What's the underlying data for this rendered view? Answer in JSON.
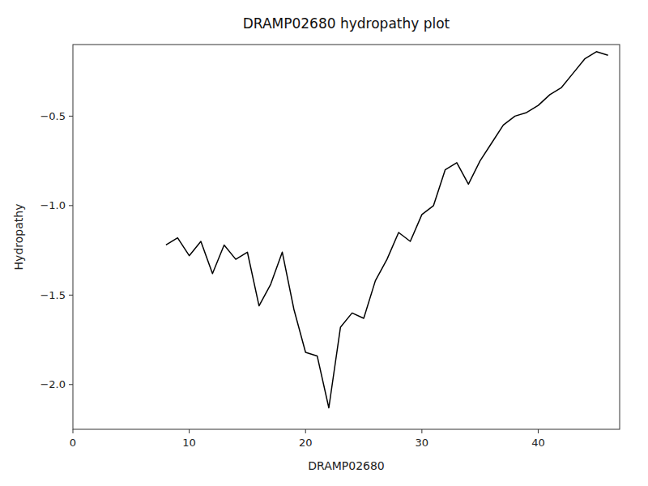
{
  "chart_data": {
    "type": "line",
    "title": "DRAMP02680 hydropathy plot",
    "xlabel": "DRAMP02680",
    "ylabel": "Hydropathy",
    "x": [
      8,
      9,
      10,
      11,
      12,
      13,
      14,
      15,
      16,
      17,
      18,
      19,
      20,
      21,
      22,
      23,
      24,
      25,
      26,
      27,
      28,
      29,
      30,
      31,
      32,
      33,
      34,
      35,
      36,
      37,
      38,
      39,
      40,
      41,
      42,
      43,
      44,
      45,
      46
    ],
    "values": [
      -1.22,
      -1.18,
      -1.28,
      -1.2,
      -1.38,
      -1.22,
      -1.3,
      -1.26,
      -1.56,
      -1.44,
      -1.26,
      -1.58,
      -1.82,
      -1.84,
      -2.13,
      -1.68,
      -1.6,
      -1.63,
      -1.42,
      -1.3,
      -1.15,
      -1.2,
      -1.05,
      -1.0,
      -0.8,
      -0.76,
      -0.88,
      -0.75,
      -0.65,
      -0.55,
      -0.5,
      -0.48,
      -0.44,
      -0.38,
      -0.34,
      -0.26,
      -0.18,
      -0.14,
      -0.16
    ],
    "color": "black",
    "xlim": [
      0,
      47
    ],
    "ylim": [
      -2.25,
      -0.1
    ],
    "xticks": [
      0,
      10,
      20,
      30,
      40
    ],
    "yticks": [
      {
        "value": -2.0,
        "label": "−2.0"
      },
      {
        "value": -1.5,
        "label": "−1.5"
      },
      {
        "value": -1.0,
        "label": "−1.0"
      },
      {
        "value": -0.5,
        "label": "−0.5"
      }
    ],
    "grid": false
  }
}
